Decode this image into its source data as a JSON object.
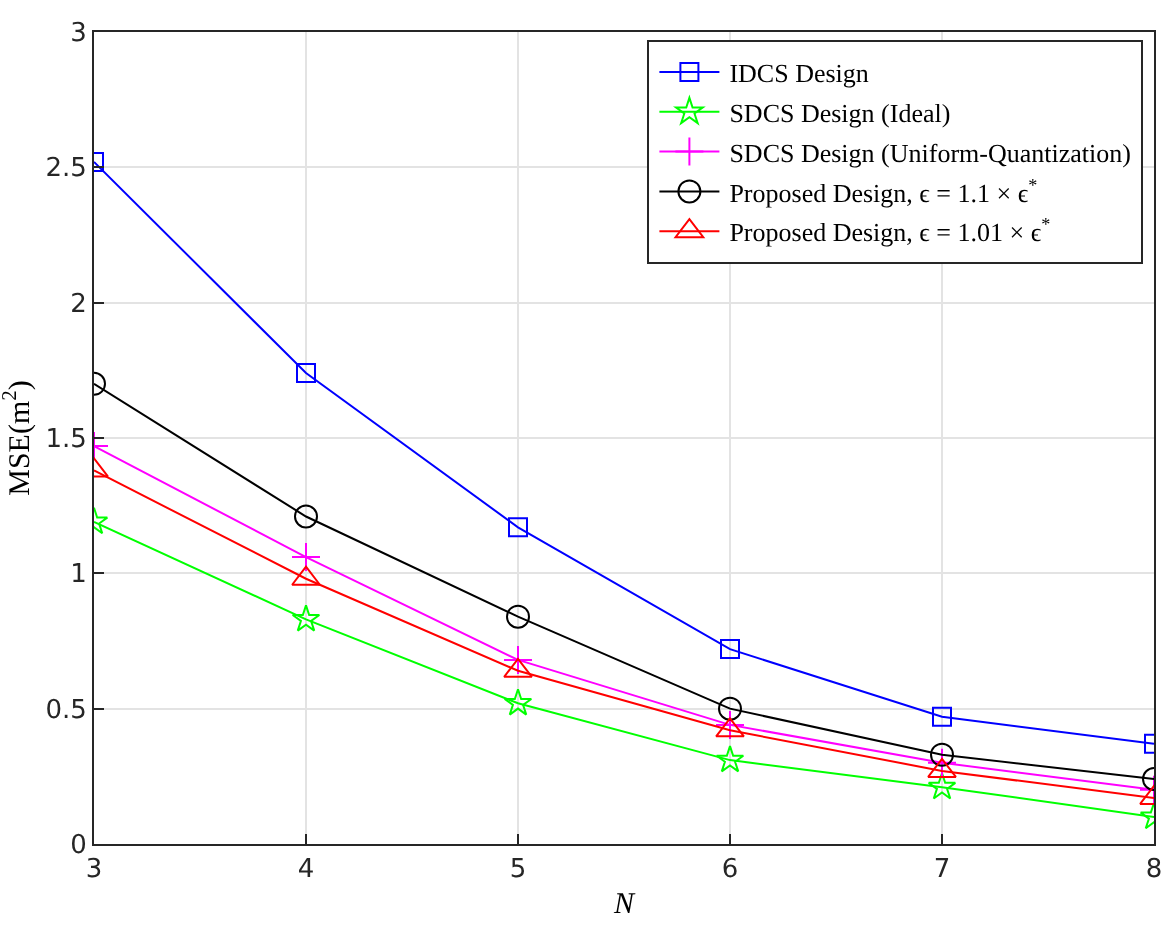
{
  "chart_data": {
    "type": "line",
    "xlabel": "N",
    "ylabel": "MSE(m$^{2}$)",
    "x": [
      3,
      4,
      5,
      6,
      7,
      8
    ],
    "xlim": [
      3,
      8
    ],
    "xticks": [
      3,
      4,
      5,
      6,
      7,
      8
    ],
    "ylim": [
      0,
      3
    ],
    "yticks": [
      0,
      0.5,
      1,
      1.5,
      2,
      2.5,
      3
    ],
    "grid": true,
    "legend": "top right",
    "series": [
      {
        "name": "IDCS Design",
        "color": "#0000ff",
        "marker": "square",
        "values": [
          2.52,
          1.74,
          1.17,
          0.72,
          0.47,
          0.37
        ]
      },
      {
        "name": "SDCS Design (Ideal)",
        "color": "#00ff00",
        "marker": "star",
        "values": [
          1.19,
          0.83,
          0.52,
          0.31,
          0.21,
          0.1
        ]
      },
      {
        "name": "SDCS Design (Uniform-Quantization)",
        "color": "#ff00ff",
        "marker": "cross",
        "values": [
          1.47,
          1.06,
          0.68,
          0.44,
          0.3,
          0.2
        ]
      },
      {
        "name": "Proposed Design, ϵ = 1.1 × ϵ$^{*}$",
        "color": "#000000",
        "marker": "circle",
        "values": [
          1.7,
          1.21,
          0.84,
          0.5,
          0.33,
          0.24
        ]
      },
      {
        "name": "Proposed Design, ϵ = 1.01 × ϵ$^{*}$",
        "color": "#ff0000",
        "marker": "triangle",
        "values": [
          1.38,
          0.98,
          0.64,
          0.42,
          0.27,
          0.17
        ]
      }
    ]
  }
}
